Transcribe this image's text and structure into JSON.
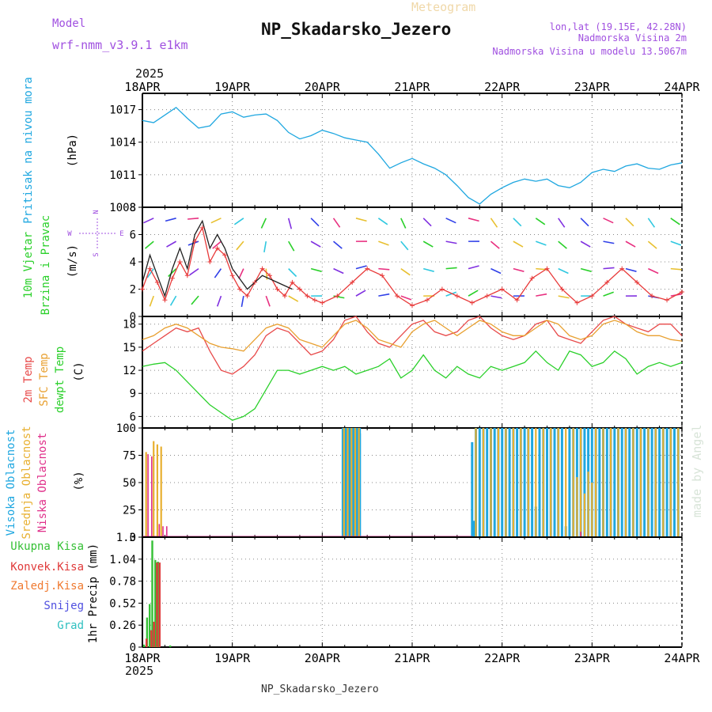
{
  "header": {
    "title": "NP_Skadarsko_Jezero",
    "subtitle": "Meteogram",
    "model_label": "Model",
    "model_name": "wrf-nmm_v3.9.1 e1km",
    "lonlat": "lon,lat (19.15E, 42.28N)",
    "elevation": "Nadmorska Visina 2m",
    "model_elevation": "Nadmorska Visina u modelu 13.5067m",
    "year_top": "2025",
    "year_bottom": "2025",
    "footer": "NP_Skadarsko_Jezero",
    "watermark": "made by Angel"
  },
  "colors": {
    "pressure": "#1fa7e0",
    "wind_speed": "#e83a3a",
    "gust": "#202020",
    "temp2m": "#e84a4a",
    "sfc_temp": "#e8a030",
    "dewpoint": "#2ad02a",
    "cloud_high": "#1fa7e0",
    "cloud_mid": "#e8b030",
    "cloud_low": "#e0308a",
    "precip_total": "#35c035",
    "precip_conv": "#e03a3a",
    "precip_frozen": "#f07a30",
    "snow": "#5050e0",
    "graupel": "#30c0c0"
  },
  "chart_data": [
    {
      "type": "line",
      "panel": "pressure",
      "ylabel": [
        "Pritisak na nivou mora",
        "(hPa)"
      ],
      "x_ticks": [
        "18APR",
        "19APR",
        "20APR",
        "21APR",
        "22APR",
        "23APR",
        "24APR"
      ],
      "ylim": [
        1008,
        1018.5
      ],
      "yticks": [
        1008,
        1011,
        1014,
        1017
      ],
      "grid": true,
      "x_hours": [
        0,
        3,
        6,
        9,
        12,
        15,
        18,
        21,
        24,
        27,
        30,
        33,
        36,
        39,
        42,
        45,
        48,
        51,
        54,
        57,
        60,
        63,
        66,
        69,
        72,
        75,
        78,
        81,
        84,
        87,
        90,
        93,
        96,
        99,
        102,
        105,
        108,
        111,
        114,
        117,
        120,
        123,
        126,
        129,
        132,
        135,
        138,
        141,
        144
      ],
      "values": [
        1016.0,
        1015.8,
        1016.5,
        1017.2,
        1016.2,
        1015.3,
        1015.5,
        1016.6,
        1016.8,
        1016.3,
        1016.5,
        1016.6,
        1016.0,
        1014.9,
        1014.3,
        1014.6,
        1015.1,
        1014.8,
        1014.4,
        1014.2,
        1014.0,
        1012.9,
        1011.6,
        1012.1,
        1012.5,
        1012.0,
        1011.6,
        1011.0,
        1010.0,
        1008.9,
        1008.3,
        1009.2,
        1009.8,
        1010.3,
        1010.6,
        1010.4,
        1010.6,
        1010.0,
        1009.8,
        1010.3,
        1011.2,
        1011.5,
        1011.3,
        1011.8,
        1012.0,
        1011.6,
        1011.5,
        1011.9,
        1012.1
      ]
    },
    {
      "type": "line",
      "panel": "wind",
      "ylabel": [
        "10m Vjetar",
        "Brzina i Pravac",
        "(m/s)"
      ],
      "compass": {
        "n": "N",
        "e": "E",
        "s": "S",
        "w": "W"
      },
      "ylim": [
        0,
        8
      ],
      "yticks": [
        0,
        2,
        4,
        6,
        8
      ],
      "grid": true,
      "series": [
        {
          "name": "wind speed",
          "x_hours": [
            0,
            2,
            4,
            6,
            8,
            10,
            12,
            14,
            16,
            18,
            20,
            22,
            24,
            26,
            28,
            30,
            32,
            34,
            36,
            38,
            40,
            42,
            44,
            46,
            48,
            52,
            56,
            60,
            64,
            68,
            72,
            76,
            80,
            84,
            88,
            92,
            96,
            100,
            104,
            108,
            112,
            116,
            120,
            124,
            128,
            132,
            136,
            140,
            144
          ],
          "values": [
            2.0,
            3.5,
            2.5,
            1.2,
            2.8,
            4.0,
            3.0,
            5.5,
            6.5,
            4.0,
            5.0,
            4.5,
            3.0,
            2.0,
            1.5,
            2.5,
            3.5,
            3.0,
            2.0,
            1.5,
            2.5,
            2.0,
            1.5,
            1.2,
            1.0,
            1.5,
            2.5,
            3.5,
            3.0,
            1.5,
            0.8,
            1.2,
            2.0,
            1.5,
            1.0,
            1.5,
            2.0,
            1.2,
            2.8,
            3.5,
            2.0,
            1.0,
            1.5,
            2.5,
            3.5,
            2.5,
            1.5,
            1.2,
            1.8
          ]
        },
        {
          "name": "gust",
          "x_hours": [
            0,
            2,
            4,
            6,
            8,
            10,
            12,
            14,
            16,
            18,
            20,
            22,
            24,
            28,
            32,
            36,
            40
          ],
          "values": [
            2.5,
            4.5,
            3.0,
            1.5,
            3.5,
            5.0,
            3.5,
            6.0,
            7.0,
            5.0,
            6.0,
            5.0,
            3.5,
            2.0,
            3.0,
            2.5,
            2.0
          ]
        }
      ],
      "barbs": [
        {
          "x_hour": 3,
          "dir_deg": 200
        },
        {
          "x_hour": 9,
          "dir_deg": 210
        },
        {
          "x_hour": 15,
          "dir_deg": 220
        },
        {
          "x_hour": 21,
          "dir_deg": 200
        },
        {
          "x_hour": 27,
          "dir_deg": 190
        },
        {
          "x_hour": 33,
          "dir_deg": 160
        },
        {
          "x_hour": 39,
          "dir_deg": 120
        },
        {
          "x_hour": 45,
          "dir_deg": 90
        },
        {
          "x_hour": 51,
          "dir_deg": 100
        },
        {
          "x_hour": 57,
          "dir_deg": 60
        },
        {
          "x_hour": 63,
          "dir_deg": 80
        },
        {
          "x_hour": 69,
          "dir_deg": 110
        },
        {
          "x_hour": 75,
          "dir_deg": 90
        },
        {
          "x_hour": 81,
          "dir_deg": 70
        },
        {
          "x_hour": 87,
          "dir_deg": 60
        },
        {
          "x_hour": 93,
          "dir_deg": 100
        },
        {
          "x_hour": 99,
          "dir_deg": 90
        },
        {
          "x_hour": 105,
          "dir_deg": 80
        },
        {
          "x_hour": 111,
          "dir_deg": 100
        },
        {
          "x_hour": 117,
          "dir_deg": 90
        },
        {
          "x_hour": 123,
          "dir_deg": 70
        },
        {
          "x_hour": 129,
          "dir_deg": 90
        },
        {
          "x_hour": 135,
          "dir_deg": 100
        },
        {
          "x_hour": 141,
          "dir_deg": 80
        }
      ]
    },
    {
      "type": "line",
      "panel": "temperature",
      "ylabel": [
        "2m Temp",
        "SFC Temp",
        "dewpt Temp",
        "(C)"
      ],
      "ylim": [
        4.5,
        19
      ],
      "yticks": [
        6,
        9,
        12,
        15,
        18
      ],
      "grid": true,
      "x_hours": [
        0,
        3,
        6,
        9,
        12,
        15,
        18,
        21,
        24,
        27,
        30,
        33,
        36,
        39,
        42,
        45,
        48,
        51,
        54,
        57,
        60,
        63,
        66,
        69,
        72,
        75,
        78,
        81,
        84,
        87,
        90,
        93,
        96,
        99,
        102,
        105,
        108,
        111,
        114,
        117,
        120,
        123,
        126,
        129,
        132,
        135,
        138,
        141,
        144
      ],
      "series": [
        {
          "name": "2m Temp",
          "values": [
            14.5,
            15.5,
            16.5,
            17.5,
            17.0,
            17.5,
            14.5,
            12.0,
            11.5,
            12.5,
            14.0,
            16.5,
            17.5,
            17.0,
            15.5,
            14.0,
            14.5,
            16.0,
            18.5,
            19.0,
            17.0,
            15.5,
            15.0,
            16.5,
            18.0,
            18.5,
            17.0,
            16.5,
            17.0,
            18.5,
            19.0,
            17.5,
            16.5,
            16.0,
            16.5,
            18.0,
            18.5,
            16.5,
            16.0,
            15.5,
            17.0,
            18.5,
            19.0,
            18.0,
            17.5,
            17.0,
            18.0,
            18.0,
            16.5
          ]
        },
        {
          "name": "SFC Temp",
          "values": [
            16.0,
            16.5,
            17.5,
            18.0,
            17.5,
            16.5,
            15.5,
            15.0,
            14.8,
            14.5,
            16.0,
            17.5,
            18.0,
            17.5,
            16.0,
            15.5,
            15.0,
            16.5,
            18.0,
            18.5,
            17.5,
            16.0,
            15.5,
            15.0,
            17.0,
            18.0,
            18.5,
            17.5,
            16.5,
            17.5,
            18.5,
            18.0,
            17.0,
            16.5,
            16.5,
            17.5,
            18.5,
            18.0,
            16.5,
            16.0,
            16.5,
            18.0,
            18.5,
            18.0,
            17.0,
            16.5,
            16.5,
            16.0,
            15.8
          ]
        },
        {
          "name": "dewpt Temp",
          "values": [
            12.5,
            12.8,
            13.0,
            12.0,
            10.5,
            9.0,
            7.5,
            6.5,
            5.5,
            6.0,
            7.0,
            9.5,
            12.0,
            12.0,
            11.5,
            12.0,
            12.5,
            12.0,
            12.5,
            11.5,
            12.0,
            12.5,
            13.5,
            11.0,
            12.0,
            14.0,
            12.0,
            11.0,
            12.5,
            11.5,
            11.0,
            12.5,
            12.0,
            12.5,
            13.0,
            14.5,
            13.0,
            12.0,
            14.5,
            14.0,
            12.5,
            13.0,
            14.5,
            13.5,
            11.5,
            12.5,
            13.0,
            12.5,
            13.0
          ]
        }
      ]
    },
    {
      "type": "bar",
      "panel": "clouds",
      "ylabel": [
        "Visoka Oblacnost",
        "Srednja Oblacnost",
        "Niska Oblacnost",
        "(%)"
      ],
      "ylim": [
        0,
        100
      ],
      "yticks": [
        0,
        25,
        50,
        75,
        100
      ],
      "grid": true,
      "series": [
        {
          "name": "Visoka Oblacnost",
          "x_hours": [
            1,
            2,
            3,
            4,
            5,
            6,
            7,
            8,
            9,
            10,
            53.5,
            54,
            54.5,
            55,
            55.5,
            56,
            56.5,
            57,
            57.5,
            58,
            58,
            88,
            88.5,
            89,
            90,
            91,
            92,
            93,
            94,
            95,
            96,
            97,
            98,
            99,
            100,
            101,
            102,
            103,
            104,
            105,
            106,
            107,
            108,
            109,
            110,
            111,
            112,
            113,
            114,
            115,
            116,
            117,
            118,
            119,
            120,
            121,
            122,
            123,
            124,
            125,
            126,
            127,
            128,
            129,
            130,
            131,
            132,
            133,
            134,
            135,
            136,
            137,
            138,
            139,
            140,
            141,
            142,
            143
          ],
          "values": [
            0,
            0,
            0,
            0,
            0,
            0,
            0,
            0,
            0,
            0,
            100,
            100,
            100,
            100,
            100,
            100,
            100,
            100,
            100,
            100,
            95,
            87,
            15,
            100,
            100,
            100,
            100,
            100,
            100,
            100,
            100,
            100,
            100,
            100,
            100,
            100,
            100,
            100,
            100,
            28,
            100,
            100,
            100,
            100,
            100,
            100,
            100,
            10,
            100,
            100,
            100,
            100,
            100,
            100,
            100,
            100,
            100,
            100,
            100,
            100,
            100,
            100,
            100,
            100,
            100,
            100,
            100,
            100,
            100,
            100,
            100,
            100,
            100,
            100,
            100,
            100,
            100,
            100
          ]
        },
        {
          "name": "Srednja Oblacnost",
          "x_hours": [
            1,
            3,
            4,
            5,
            53.8,
            54.8,
            55.8,
            56.8,
            57.8,
            89,
            91,
            93,
            95,
            97,
            99,
            101,
            103,
            105,
            107,
            109,
            111,
            113,
            115,
            116,
            117,
            118,
            119,
            120,
            121,
            123,
            125,
            127,
            129,
            131,
            133,
            135,
            137,
            139,
            141,
            143
          ],
          "values": [
            78,
            88,
            85,
            83,
            100,
            100,
            100,
            100,
            100,
            100,
            100,
            100,
            100,
            100,
            100,
            100,
            100,
            100,
            100,
            100,
            100,
            100,
            100,
            55,
            100,
            40,
            60,
            50,
            100,
            100,
            100,
            100,
            100,
            100,
            100,
            100,
            100,
            100,
            100,
            100
          ]
        },
        {
          "name": "Niska Oblacnost",
          "x_hours": [
            1.5,
            2.5,
            4.5,
            5.5,
            6.5,
            117
          ],
          "values": [
            76,
            74,
            12,
            10,
            10,
            5
          ]
        }
      ]
    },
    {
      "type": "bar",
      "panel": "precipitation",
      "ylabel": [
        "1hr Precip",
        "(mm)"
      ],
      "legend": [
        "Ukupna Kisa",
        "Konvek.Kisa",
        "Zaledj.Kisa",
        "Snijeg",
        "Grad"
      ],
      "ylim": [
        0,
        1.3
      ],
      "yticks": [
        0,
        0.26,
        0.52,
        0.78,
        1.04,
        1.3
      ],
      "ytick_labels": [
        "0",
        "0.26",
        "0.52",
        "0.78",
        "1.04",
        "1.3"
      ],
      "grid": true,
      "series": [
        {
          "name": "Ukupna Kisa",
          "x_hours": [
            0.5,
            1.3,
            2,
            2.7,
            3.5,
            4.2,
            5,
            7.5
          ],
          "values": [
            0.03,
            0.35,
            0.51,
            1.26,
            1.03,
            1.01,
            0.0,
            0.02
          ]
        },
        {
          "name": "Konvek.Kisa",
          "x_hours": [
            1,
            2.3,
            3,
            3.8,
            4.5
          ],
          "values": [
            0.1,
            0.2,
            0.3,
            1.0,
            1.0
          ]
        }
      ]
    }
  ]
}
